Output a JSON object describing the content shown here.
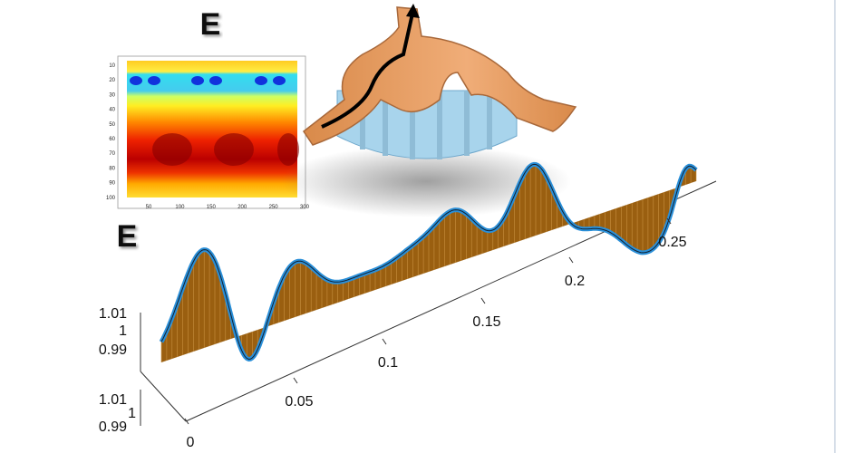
{
  "heatmap": {
    "title": "E",
    "yticks": [
      10,
      20,
      30,
      40,
      50,
      60,
      70,
      80,
      90,
      100
    ],
    "xticks": [
      50,
      100,
      150,
      200,
      250,
      300
    ]
  },
  "plot3d": {
    "title": "E",
    "xticks": [
      0,
      0.05,
      0.1,
      0.15,
      0.2,
      0.25
    ],
    "upper_zticks": [
      1.01,
      1,
      0.99
    ],
    "lower_zticks": [
      1.01,
      1,
      0.99
    ]
  }
}
